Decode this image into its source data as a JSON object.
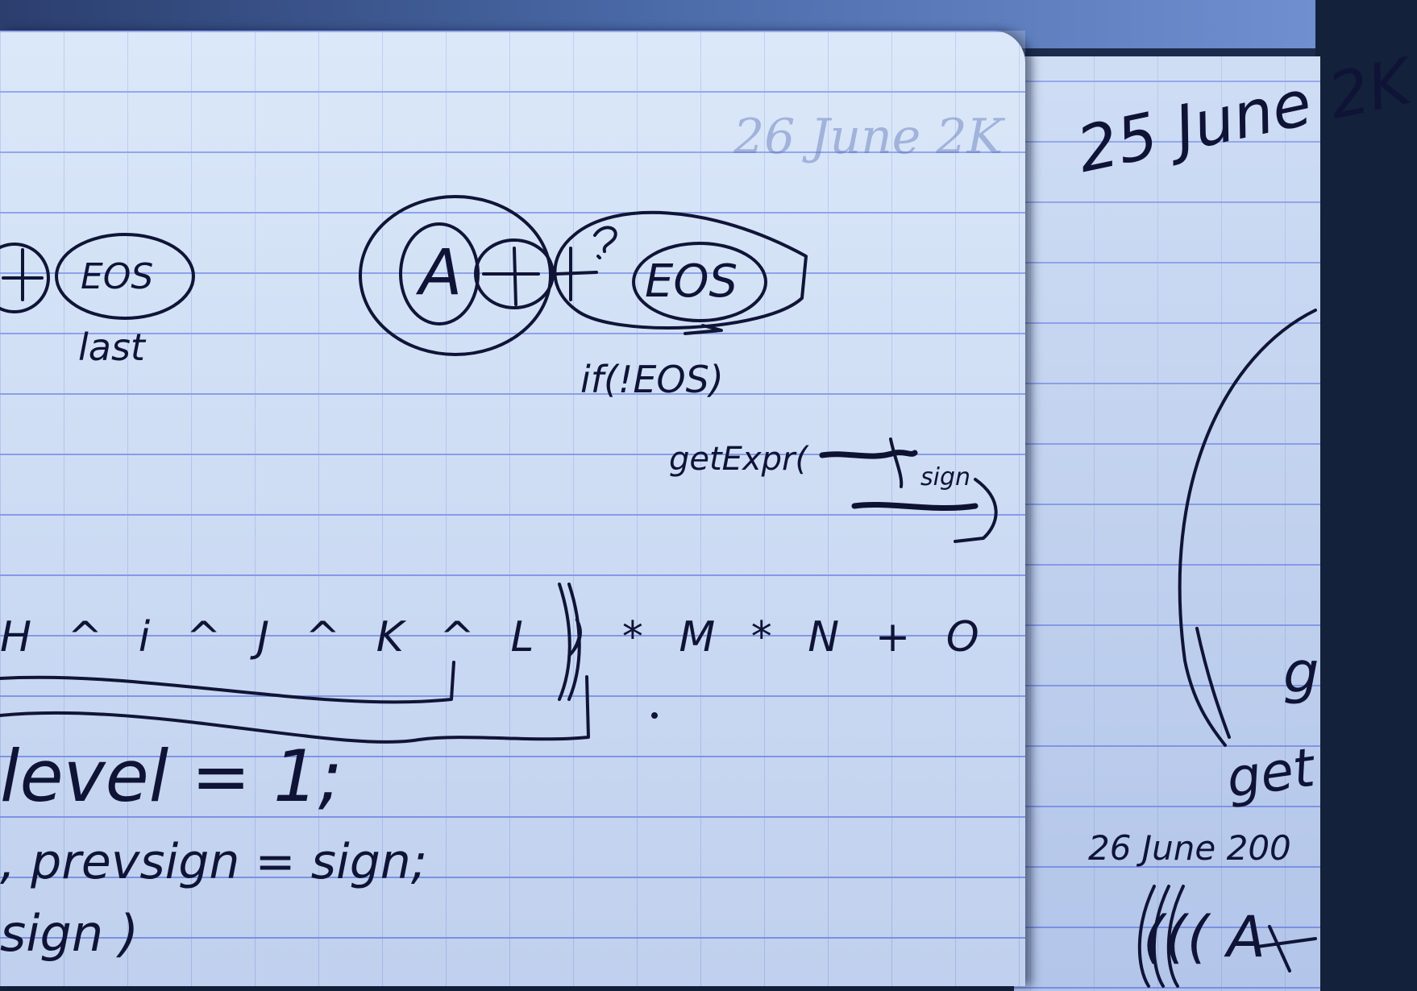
{
  "left_page": {
    "labels": {
      "circle_eos_left": "EOS",
      "under_left": "last",
      "circle_a": "A",
      "circle_eos_right": "EOS",
      "condition": "if(!EOS)",
      "call": "getExpr(",
      "call_arg": "sign",
      "expression": "H ^ i ^ J ^ K ^ L ) * M * N + O",
      "code_line_1": "level = 1;",
      "code_line_2": ", prevsign = sign;",
      "code_line_3": "sign )"
    }
  },
  "right_page": {
    "date_top": "25 June 2K",
    "word_mid": "g",
    "word_low": "get",
    "date_bottom": "26 June 200",
    "bottom_fragment": "((( A"
  },
  "colors": {
    "ink": "#101436",
    "paper": "#d3e3f8",
    "grid_line": "#7f95ea"
  }
}
